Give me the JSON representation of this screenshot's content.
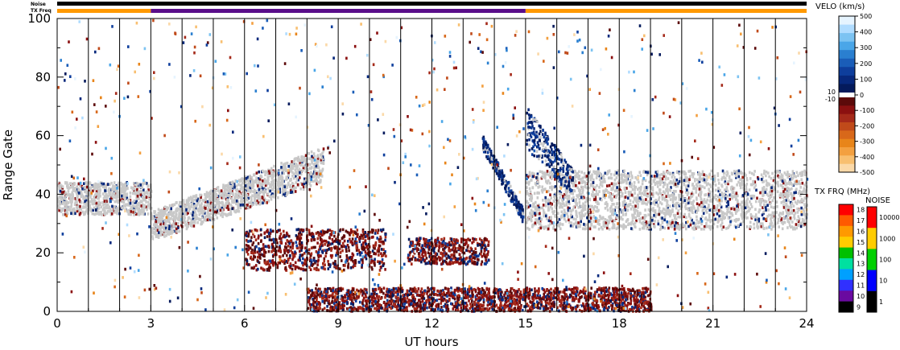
{
  "chart_data": {
    "type": "heatmap",
    "xlabel": "UT hours",
    "ylabel": "Range Gate",
    "xlim": [
      0,
      24
    ],
    "ylim": [
      0,
      100
    ],
    "x_ticks": [
      "0",
      "3",
      "6",
      "9",
      "12",
      "15",
      "18",
      "21",
      "24"
    ],
    "x_tick_values": [
      0,
      3,
      6,
      9,
      12,
      15,
      18,
      21,
      24
    ],
    "y_ticks": [
      "0",
      "20",
      "40",
      "60",
      "80",
      "100"
    ],
    "y_tick_values": [
      0,
      20,
      40,
      60,
      80,
      100
    ],
    "grid": "vertical lines at 1-hour intervals",
    "top_bars": {
      "noise_label": "Noise",
      "txfreq_label": "TX Freq",
      "txfreq_segments": [
        {
          "start": 0,
          "end": 3,
          "color": "#ff9900"
        },
        {
          "start": 3,
          "end": 15,
          "color": "#5a0e8a"
        },
        {
          "start": 15,
          "end": 24,
          "color": "#ff9900"
        }
      ]
    },
    "velocity_colorbar": {
      "title": "VELO (km/s)",
      "ticks": [
        "500",
        "400",
        "300",
        "200",
        "100",
        "0",
        "-100",
        "-200",
        "-300",
        "-400",
        "-500"
      ],
      "tick_values": [
        500,
        400,
        300,
        200,
        100,
        0,
        -100,
        -200,
        -300,
        -400,
        -500
      ],
      "side_ticks": [
        "10",
        "-10"
      ],
      "colors_positive": [
        "#e6f4ff",
        "#b0dcff",
        "#7cc3f2",
        "#4aa6e8",
        "#2a7fd0",
        "#1a5db8",
        "#0e3e9c",
        "#07287c",
        "#041a5c"
      ],
      "colors_negative": [
        "#5c0a0a",
        "#8b1010",
        "#a52a1a",
        "#c04a1a",
        "#d8681a",
        "#e8851a",
        "#f3a040",
        "#f8bf70",
        "#fbd9a8"
      ],
      "ground_scatter_color": "#c8c8c8"
    },
    "txfreq_colorbar": {
      "title": "TX FRQ (MHz)",
      "ticks": [
        "18",
        "17",
        "16",
        "15",
        "14",
        "13",
        "12",
        "11",
        "10",
        "9"
      ],
      "colors": [
        "#ff0000",
        "#ff5a00",
        "#ff9900",
        "#ffcc00",
        "#00c000",
        "#00e0a0",
        "#00a0ff",
        "#3030ff",
        "#6a0aa0",
        "#000000"
      ]
    },
    "noise_colorbar": {
      "title": "NOISE",
      "ticks": [
        "10000",
        "1000",
        "100",
        "10",
        "1"
      ],
      "colors": [
        "#ff0000",
        "#ffcc00",
        "#00d000",
        "#0000ff",
        "#000000"
      ]
    },
    "regions": [
      {
        "name": "ground scatter band",
        "x": [
          0,
          3
        ],
        "y": [
          33,
          44
        ],
        "kind": "ground"
      },
      {
        "name": "ground scatter rising",
        "x": [
          3,
          8.5
        ],
        "y_start": [
          24,
          34
        ],
        "y_end": [
          44,
          56
        ],
        "kind": "ground"
      },
      {
        "name": "ground scatter after 15 UT",
        "x": [
          15,
          24
        ],
        "y": [
          28,
          48
        ],
        "kind": "ground"
      },
      {
        "name": "westward flow patch",
        "x": [
          6,
          10.5
        ],
        "y": [
          14,
          28
        ],
        "kind": "negative"
      },
      {
        "name": "westward flow patch",
        "x": [
          11.2,
          13.8
        ],
        "y": [
          16,
          25
        ],
        "kind": "negative"
      },
      {
        "name": "near-range negative echoes",
        "x": [
          8,
          19
        ],
        "y": [
          0,
          8
        ],
        "kind": "negative"
      },
      {
        "name": "positive streak descending",
        "x": [
          13.6,
          14.9
        ],
        "y_start": [
          55,
          60
        ],
        "y_end": [
          30,
          35
        ],
        "kind": "positive"
      },
      {
        "name": "positive streak after 15 UT",
        "x": [
          15,
          16.5
        ],
        "y_start": [
          55,
          70
        ],
        "y_end": [
          40,
          48
        ],
        "kind": "positive"
      }
    ]
  }
}
